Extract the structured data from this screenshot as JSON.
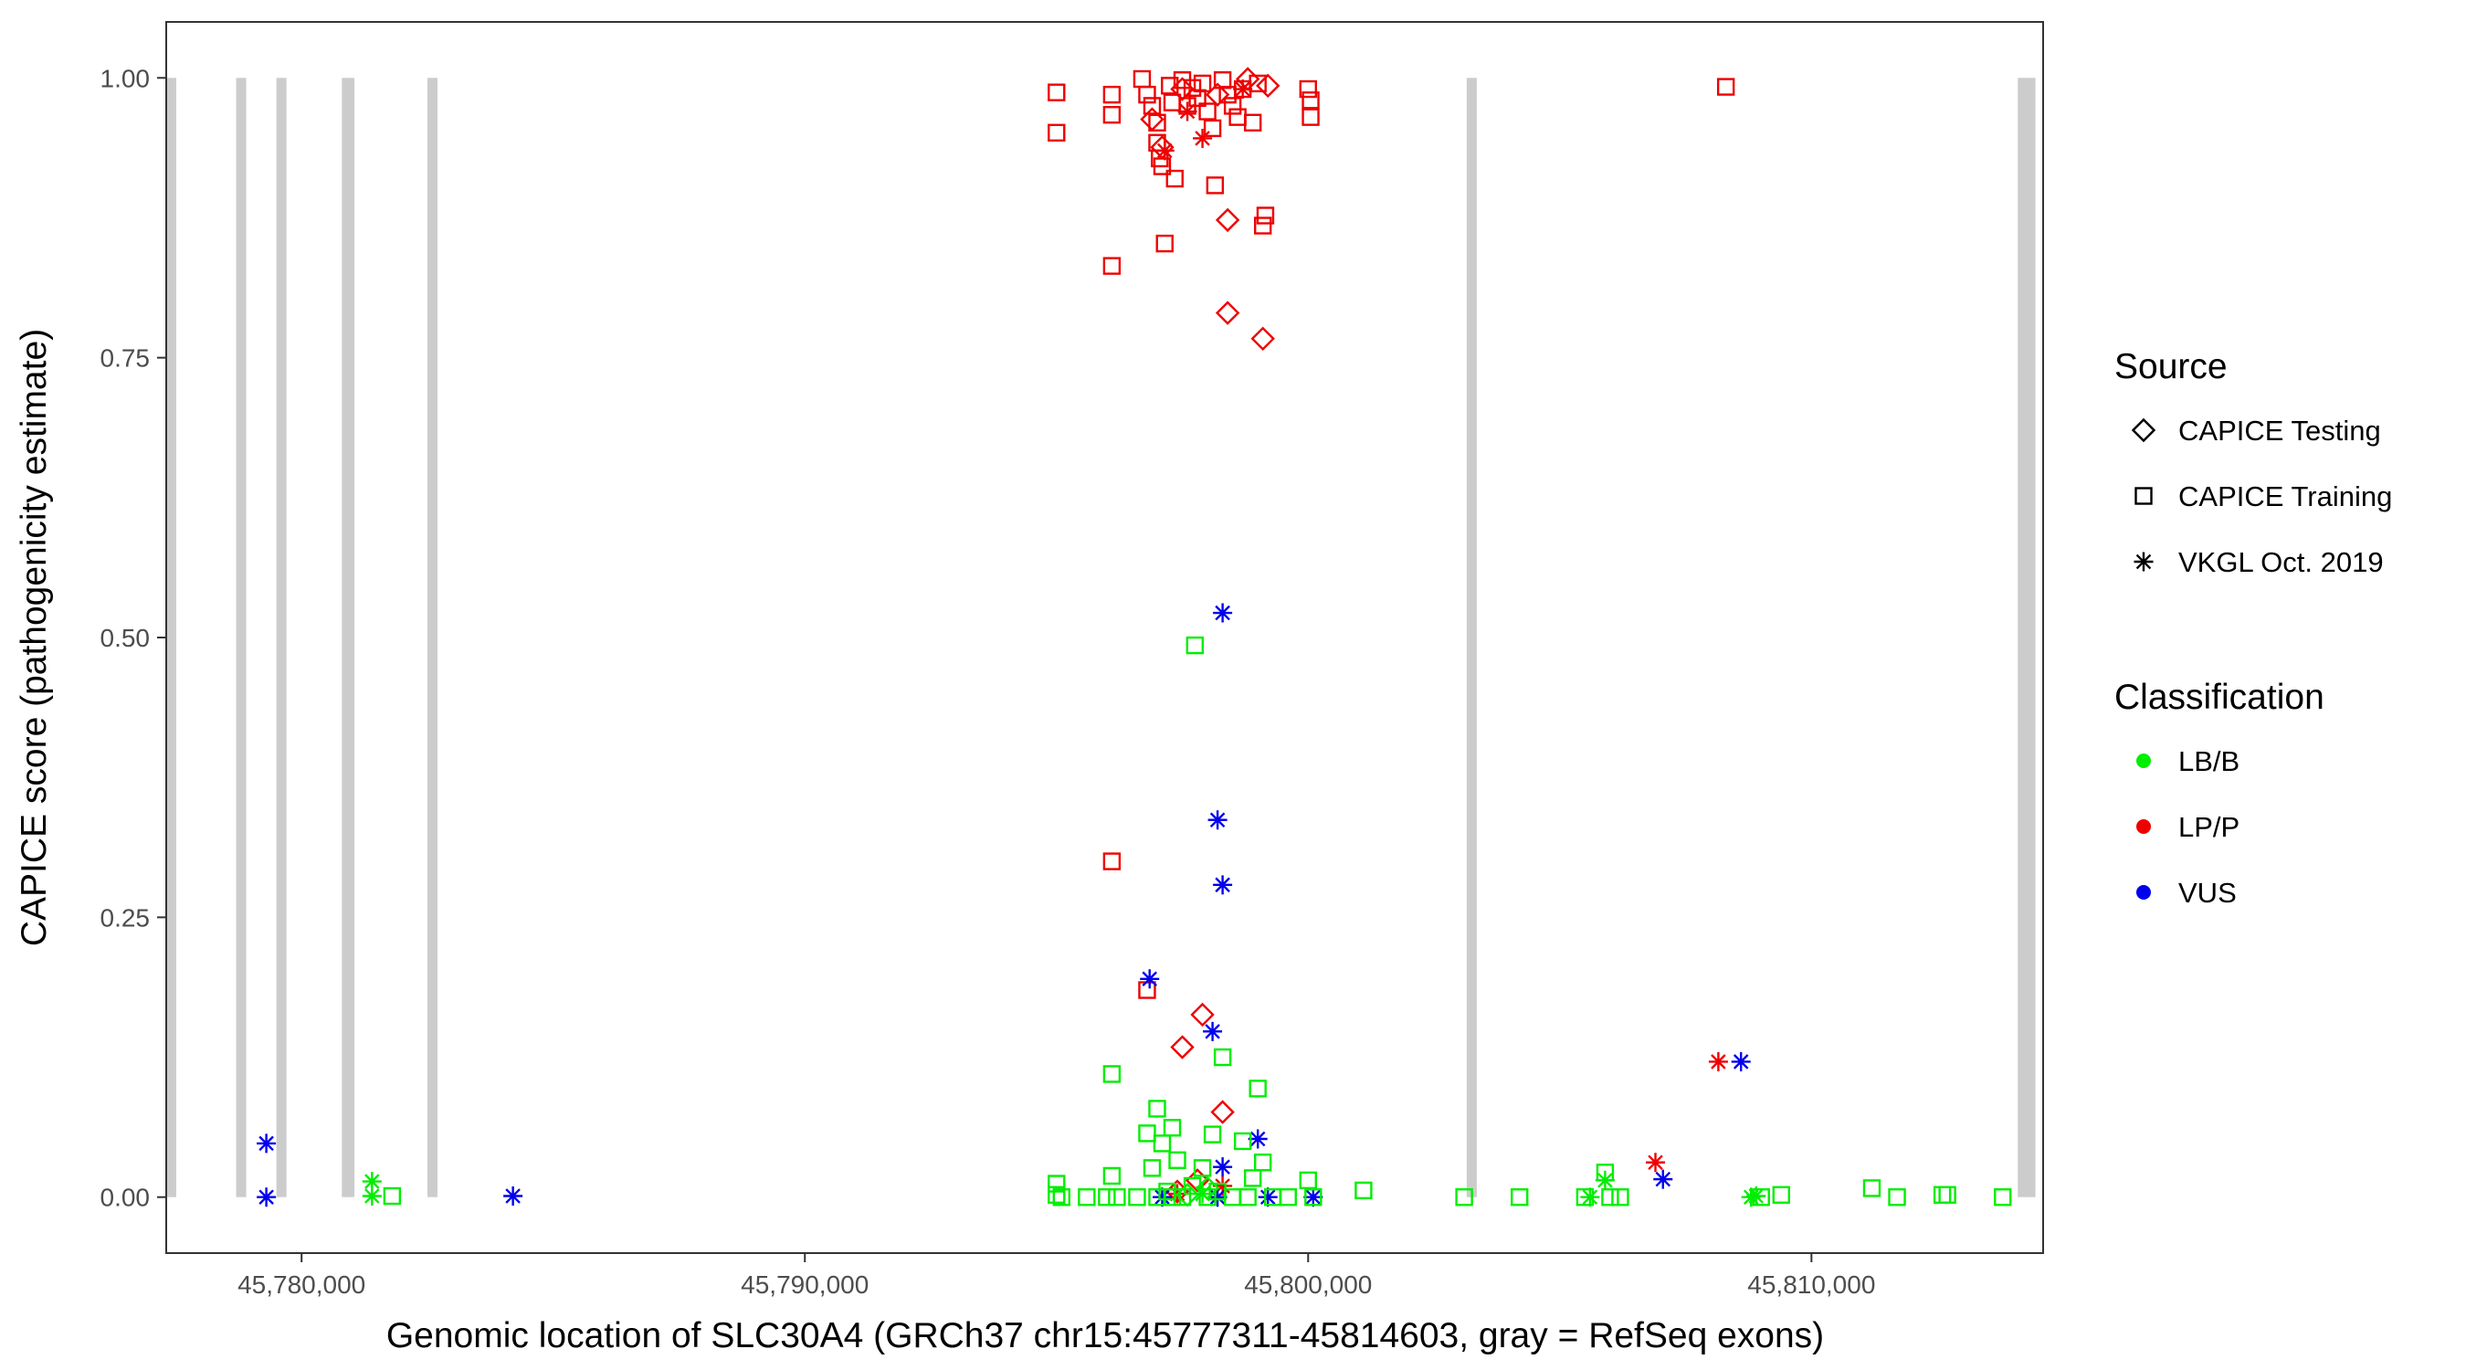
{
  "chart_data": {
    "type": "scatter",
    "xlabel": "Genomic location of SLC30A4 (GRCh37 chr15:45777311-45814603, gray = RefSeq exons)",
    "ylabel": "CAPICE score (pathogenicity estimate)",
    "xlim": [
      45777311,
      45814603
    ],
    "ylim": [
      -0.05,
      1.05
    ],
    "x_ticks": [
      45780000,
      45790000,
      45800000,
      45810000
    ],
    "x_tick_labels": [
      "45,780,000",
      "45,790,000",
      "45,800,000",
      "45,810,000"
    ],
    "y_ticks": [
      0,
      0.25,
      0.5,
      0.75,
      1.0
    ],
    "y_tick_labels": [
      "0.00",
      "0.25",
      "0.50",
      "0.75",
      "1.00"
    ],
    "grid": false,
    "legend_position": "right",
    "exons": [
      [
        45777310,
        45777510
      ],
      [
        45778700,
        45778900
      ],
      [
        45779500,
        45779700
      ],
      [
        45780800,
        45781050
      ],
      [
        45782500,
        45782700
      ],
      [
        45803150,
        45803350
      ],
      [
        45814100,
        45814450
      ]
    ],
    "exon_color": "#cccccc",
    "legend": {
      "source_title": "Source",
      "source_items": [
        {
          "label": "CAPICE Testing",
          "shape": "diamond"
        },
        {
          "label": "CAPICE Training",
          "shape": "square"
        },
        {
          "label": "VKGL Oct. 2019",
          "shape": "asterisk"
        }
      ],
      "class_title": "Classification",
      "class_items": [
        {
          "label": "LB/B",
          "color": "#00ee00"
        },
        {
          "label": "LP/P",
          "color": "#ee0000"
        },
        {
          "label": "VUS",
          "color": "#0000ee"
        }
      ]
    },
    "series": [
      {
        "source": "CAPICE Training",
        "classification": "LP/P",
        "points": [
          [
            45795000,
            0.987
          ],
          [
            45795000,
            0.951
          ],
          [
            45796100,
            0.985
          ],
          [
            45796100,
            0.967
          ],
          [
            45796100,
            0.832
          ],
          [
            45796100,
            0.3
          ],
          [
            45796700,
            0.999
          ],
          [
            45796800,
            0.985
          ],
          [
            45796900,
            0.975
          ],
          [
            45797000,
            0.96
          ],
          [
            45797000,
            0.942
          ],
          [
            45797050,
            0.928
          ],
          [
            45797100,
            0.921
          ],
          [
            45797150,
            0.852
          ],
          [
            45797250,
            0.993
          ],
          [
            45797300,
            0.978
          ],
          [
            45797350,
            0.91
          ],
          [
            45797500,
            0.998
          ],
          [
            45797600,
            0.975
          ],
          [
            45797700,
            0.991
          ],
          [
            45797800,
            0.982
          ],
          [
            45797900,
            0.995
          ],
          [
            45798000,
            0.97
          ],
          [
            45798100,
            0.955
          ],
          [
            45798150,
            0.904
          ],
          [
            45798300,
            0.998
          ],
          [
            45798400,
            0.985
          ],
          [
            45798500,
            0.975
          ],
          [
            45798600,
            0.965
          ],
          [
            45798700,
            0.99
          ],
          [
            45798900,
            0.96
          ],
          [
            45799000,
            0.995
          ],
          [
            45799100,
            0.868
          ],
          [
            45799150,
            0.877
          ],
          [
            45800000,
            0.99
          ],
          [
            45800050,
            0.98
          ],
          [
            45800050,
            0.965
          ],
          [
            45796800,
            0.185
          ],
          [
            45808300,
            0.992
          ]
        ]
      },
      {
        "source": "CAPICE Testing",
        "classification": "LP/P",
        "points": [
          [
            45796900,
            0.963
          ],
          [
            45797100,
            0.938
          ],
          [
            45797500,
            0.99
          ],
          [
            45798200,
            0.985
          ],
          [
            45798800,
            0.999
          ],
          [
            45799200,
            0.993
          ],
          [
            45798400,
            0.873
          ],
          [
            45798400,
            0.79
          ],
          [
            45799100,
            0.767
          ],
          [
            45797900,
            0.163
          ],
          [
            45797500,
            0.134
          ],
          [
            45798300,
            0.076
          ],
          [
            45797800,
            0.015
          ],
          [
            45797400,
            0.005
          ]
        ]
      },
      {
        "source": "VKGL Oct. 2019",
        "classification": "LP/P",
        "points": [
          [
            45797150,
            0.935
          ],
          [
            45797600,
            0.97
          ],
          [
            45797900,
            0.946
          ],
          [
            45798700,
            0.99
          ],
          [
            45808150,
            0.121
          ],
          [
            45806900,
            0.031
          ],
          [
            45797400,
            0.003
          ],
          [
            45798300,
            0.01
          ]
        ]
      },
      {
        "source": "VKGL Oct. 2019",
        "classification": "VUS",
        "points": [
          [
            45779300,
            0.048
          ],
          [
            45779300,
            0.0
          ],
          [
            45784200,
            0.001
          ],
          [
            45798300,
            0.522
          ],
          [
            45798200,
            0.337
          ],
          [
            45798300,
            0.279
          ],
          [
            45796850,
            0.195
          ],
          [
            45798100,
            0.148
          ],
          [
            45799000,
            0.052
          ],
          [
            45798300,
            0.027
          ],
          [
            45797100,
            0.0
          ],
          [
            45798200,
            0.0
          ],
          [
            45799200,
            0.0
          ],
          [
            45800100,
            0.0
          ],
          [
            45807050,
            0.016
          ],
          [
            45808600,
            0.121
          ]
        ]
      },
      {
        "source": "VKGL Oct. 2019",
        "classification": "LB/B",
        "points": [
          [
            45781400,
            0.014
          ],
          [
            45781400,
            0.001
          ],
          [
            45805600,
            0.0
          ],
          [
            45805900,
            0.015
          ],
          [
            45808900,
            0.001
          ],
          [
            45808800,
            0.0
          ],
          [
            45797900,
            0.003
          ]
        ]
      },
      {
        "source": "CAPICE Testing",
        "classification": "LB/B",
        "points": [
          [
            45798000,
            0.008
          ],
          [
            45797600,
            0.002
          ]
        ]
      },
      {
        "source": "CAPICE Training",
        "classification": "LB/B",
        "points": [
          [
            45781800,
            0.001
          ],
          [
            45795000,
            0.012
          ],
          [
            45795000,
            0.002
          ],
          [
            45795100,
            0.0
          ],
          [
            45795600,
            0.0
          ],
          [
            45796000,
            0.0
          ],
          [
            45796100,
            0.019
          ],
          [
            45796100,
            0.11
          ],
          [
            45796200,
            0.0
          ],
          [
            45796600,
            0.0
          ],
          [
            45796800,
            0.057
          ],
          [
            45796900,
            0.026
          ],
          [
            45797000,
            0.079
          ],
          [
            45797000,
            0.0
          ],
          [
            45797100,
            0.048
          ],
          [
            45797200,
            0.005
          ],
          [
            45797300,
            0.062
          ],
          [
            45797300,
            0.0
          ],
          [
            45797400,
            0.033
          ],
          [
            45797500,
            0.0
          ],
          [
            45797700,
            0.01
          ],
          [
            45797750,
            0.493
          ],
          [
            45797900,
            0.026
          ],
          [
            45798000,
            0.0
          ],
          [
            45798100,
            0.056
          ],
          [
            45798200,
            0.005
          ],
          [
            45798300,
            0.125
          ],
          [
            45798500,
            0.0
          ],
          [
            45798700,
            0.05
          ],
          [
            45798800,
            0.0
          ],
          [
            45798900,
            0.017
          ],
          [
            45799000,
            0.097
          ],
          [
            45799100,
            0.031
          ],
          [
            45799300,
            0.0
          ],
          [
            45799600,
            0.0
          ],
          [
            45800000,
            0.015
          ],
          [
            45800100,
            0.0
          ],
          [
            45801100,
            0.006
          ],
          [
            45803100,
            0.0
          ],
          [
            45804200,
            0.0
          ],
          [
            45805500,
            0.0
          ],
          [
            45805900,
            0.022
          ],
          [
            45806000,
            0.0
          ],
          [
            45806200,
            0.0
          ],
          [
            45809000,
            0.0
          ],
          [
            45809400,
            0.002
          ],
          [
            45811200,
            0.008
          ],
          [
            45811700,
            0.0
          ],
          [
            45812600,
            0.002
          ],
          [
            45812700,
            0.002
          ],
          [
            45813800,
            0.0
          ]
        ]
      }
    ]
  }
}
